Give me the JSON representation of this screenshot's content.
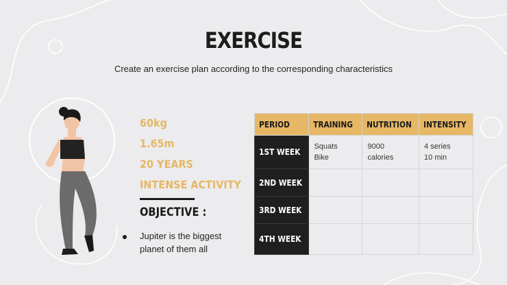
{
  "title": "EXERCISE",
  "subtitle": "Create an exercise plan according to the corresponding characteristics",
  "stats": [
    "60kg",
    "1.65m",
    "20 YEARS",
    "INTENSE ACTIVITY"
  ],
  "objective": {
    "heading": "OBJECTIVE :",
    "text": "Jupiter is the biggest planet of them all"
  },
  "table": {
    "headers": [
      "PERIOD",
      "TRAINING",
      "NUTRITION",
      "INTENSITY"
    ],
    "rows": [
      {
        "period": "1ST WEEK",
        "training": [
          "Squats",
          "Bike"
        ],
        "nutrition": [
          "9000",
          "calories"
        ],
        "intensity": [
          "4 series",
          "10 min"
        ]
      },
      {
        "period": "2ND WEEK",
        "training": [
          "",
          ""
        ],
        "nutrition": [
          "",
          ""
        ],
        "intensity": [
          "",
          ""
        ]
      },
      {
        "period": "3RD WEEK",
        "training": [
          "",
          ""
        ],
        "nutrition": [
          "",
          ""
        ],
        "intensity": [
          "",
          ""
        ]
      },
      {
        "period": "4TH WEEK",
        "training": [
          "",
          ""
        ],
        "nutrition": [
          "",
          ""
        ],
        "intensity": [
          "",
          ""
        ]
      }
    ]
  },
  "colors": {
    "background": "#ececee",
    "accent": "#e6b764",
    "dark": "#1f1f1f"
  },
  "illustration": "woman-exercising-illustration"
}
